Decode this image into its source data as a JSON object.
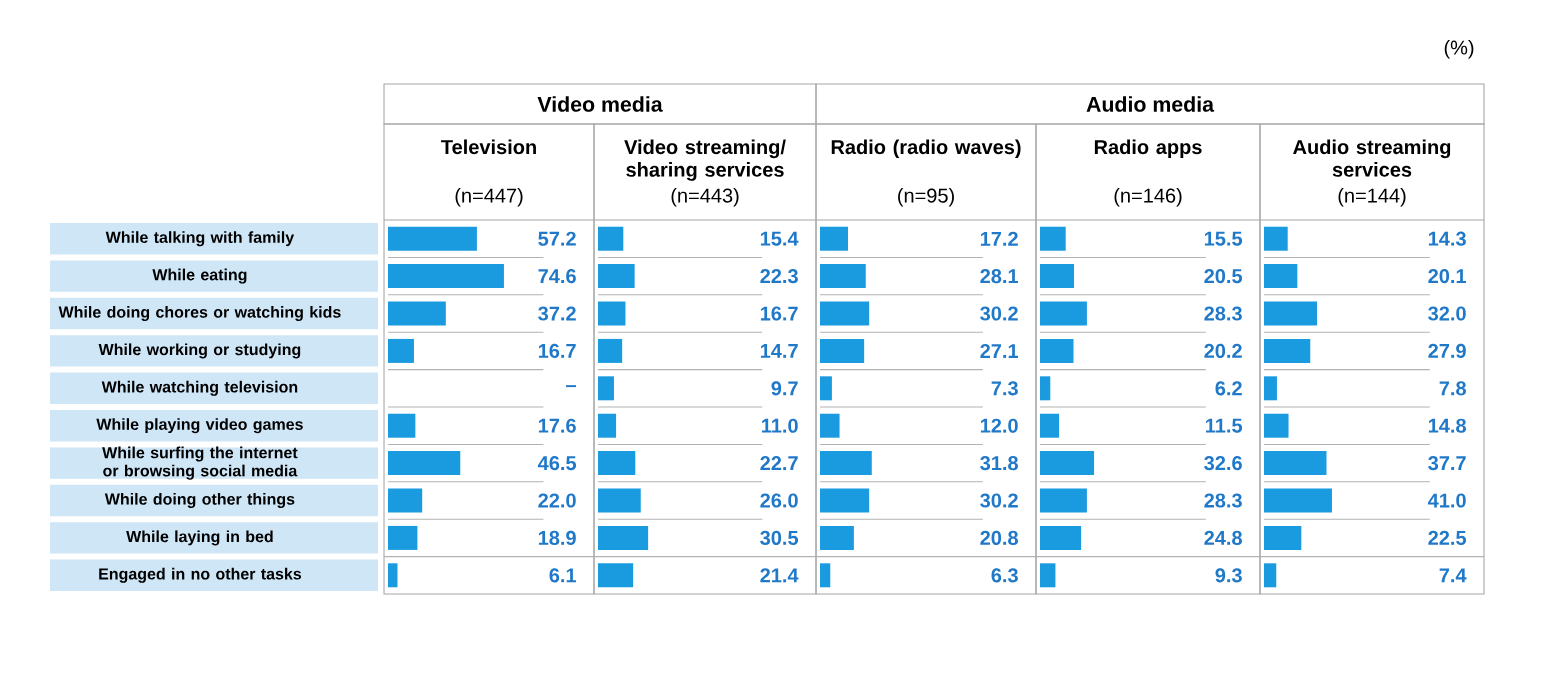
{
  "chart_data": [
    {
      "type": "bar",
      "orientation": "horizontal",
      "title": "Television",
      "subtitle": "(n=447)",
      "annotations": [
        "Video media"
      ],
      "categories": [
        "While talking with family",
        "While eating",
        "While doing chores or watching kids",
        "While working or studying",
        "While watching television",
        "While playing video games",
        "While surfing the internet or browsing social media",
        "While doing other things",
        "While laying in bed",
        "Engaged in no other tasks"
      ],
      "values": [
        57.2,
        74.6,
        37.2,
        16.7,
        null,
        17.6,
        46.5,
        22.0,
        18.9,
        6.1
      ],
      "value_labels": [
        "57.2",
        "74.6",
        "37.2",
        "16.7",
        "–",
        "17.6",
        "46.5",
        "22.0",
        "18.9",
        "6.1"
      ],
      "color": "#1a9be0",
      "xlim": [
        0,
        100
      ],
      "tick_labels": "y",
      "grid": "y"
    },
    {
      "type": "bar",
      "orientation": "horizontal",
      "title": "Video streaming/ sharing services",
      "subtitle": "(n=443)",
      "categories": [
        null,
        null,
        null,
        null,
        null,
        null,
        null,
        null,
        null,
        null
      ],
      "values": [
        15.4,
        22.3,
        16.7,
        14.7,
        9.7,
        11.0,
        22.7,
        26.0,
        30.5,
        21.4
      ],
      "value_labels": [
        "15.4",
        "22.3",
        "16.7",
        "14.7",
        "9.7",
        "11.0",
        "22.7",
        "26.0",
        "30.5",
        "21.4"
      ],
      "color": "#1a9be0",
      "xlim": [
        0,
        100
      ],
      "tick_labels": false,
      "grid": "y"
    },
    {
      "type": "bar",
      "orientation": "horizontal",
      "title": "Radio (radio waves)",
      "subtitle": "(n=95)",
      "annotations": [
        "Audio media"
      ],
      "categories": [
        null,
        null,
        null,
        null,
        null,
        null,
        null,
        null,
        null,
        null
      ],
      "values": [
        17.2,
        28.1,
        30.2,
        27.1,
        7.3,
        12.0,
        31.8,
        30.2,
        20.8,
        6.3
      ],
      "value_labels": [
        "17.2",
        "28.1",
        "30.2",
        "27.1",
        "7.3",
        "12.0",
        "31.8",
        "30.2",
        "20.8",
        "6.3"
      ],
      "color": "#1a9be0",
      "xlim": [
        0,
        100
      ],
      "tick_labels": false,
      "grid": "y"
    },
    {
      "type": "bar",
      "orientation": "horizontal",
      "title": "Radio apps",
      "subtitle": "(n=146)",
      "categories": [
        null,
        null,
        null,
        null,
        null,
        null,
        null,
        null,
        null,
        null
      ],
      "values": [
        15.5,
        20.5,
        28.3,
        20.2,
        6.2,
        11.5,
        32.6,
        28.3,
        24.8,
        9.3
      ],
      "value_labels": [
        "15.5",
        "20.5",
        "28.3",
        "20.2",
        "6.2",
        "11.5",
        "32.6",
        "28.3",
        "24.8",
        "9.3"
      ],
      "color": "#1a9be0",
      "xlim": [
        0,
        100
      ],
      "tick_labels": false,
      "grid": "y"
    },
    {
      "type": "bar",
      "orientation": "horizontal",
      "title": "Audio streaming services",
      "subtitle": "(n=144)",
      "xlabel": "(%)",
      "categories": [
        null,
        null,
        null,
        null,
        null,
        null,
        null,
        null,
        null,
        null
      ],
      "values": [
        14.3,
        20.1,
        32.0,
        27.9,
        7.8,
        14.8,
        37.7,
        41.0,
        22.5,
        7.4
      ],
      "value_labels": [
        "14.3",
        "20.1",
        "32.0",
        "27.9",
        "7.8",
        "14.8",
        "37.7",
        "41.0",
        "22.5",
        "7.4"
      ],
      "color": "#1a9be0",
      "xlim": [
        0,
        100
      ],
      "tick_labels": false,
      "grid": "y"
    }
  ]
}
